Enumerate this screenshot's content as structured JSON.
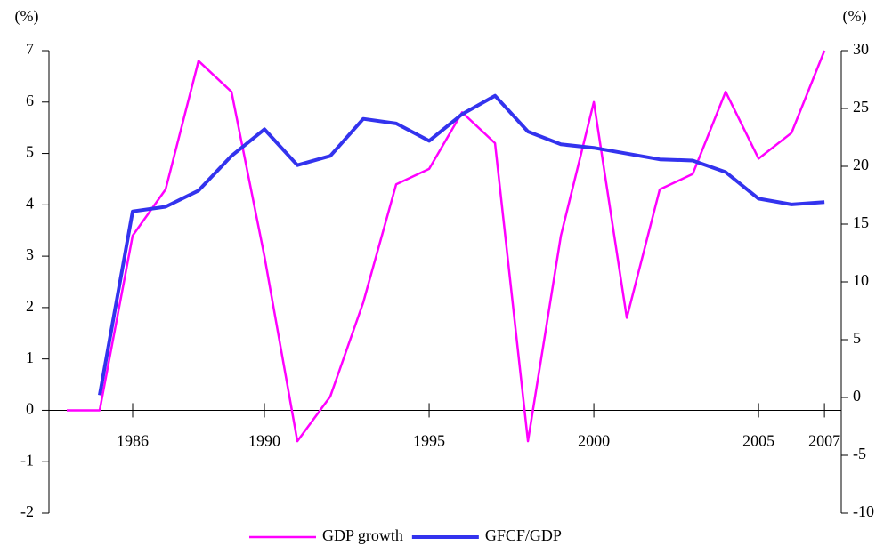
{
  "chart_data": {
    "type": "line",
    "ylabel": "(%)",
    "y2label": "(%)",
    "x": [
      1984,
      1985,
      1986,
      1987,
      1988,
      1989,
      1990,
      1991,
      1992,
      1993,
      1994,
      1995,
      1996,
      1997,
      1998,
      1999,
      2000,
      2001,
      2002,
      2003,
      2004,
      2005,
      2006,
      2007
    ],
    "series": [
      {
        "name": "GDP growth",
        "color": "#ff00ff",
        "values": [
          0,
          0,
          3.4,
          4.3,
          6.8,
          6.2,
          3.0,
          -0.6,
          0.27,
          2.1,
          4.4,
          4.7,
          5.8,
          5.2,
          -0.6,
          3.4,
          6.0,
          1.8,
          4.3,
          4.6,
          6.2,
          4.9,
          5.4,
          7.0
        ]
      },
      {
        "name": "GFCF/GDP",
        "color": "#3333ee",
        "axis": "y2",
        "values": [
          null,
          0.2,
          16.1,
          16.5,
          17.9,
          20.9,
          23.2,
          20.1,
          20.9,
          24.1,
          23.7,
          22.2,
          24.5,
          26.1,
          23.0,
          21.9,
          21.6,
          21.1,
          20.6,
          20.5,
          19.5,
          17.2,
          16.7,
          16.9
        ]
      }
    ],
    "xlim": [
      1983.46,
      2007.51
    ],
    "xticks": [
      1986,
      1990,
      1995,
      2000,
      2005,
      2007
    ],
    "ylim": [
      -2,
      7
    ],
    "yticks": [
      -2,
      -1,
      0,
      1,
      2,
      3,
      4,
      5,
      6,
      7
    ],
    "y2lim": [
      -10,
      30
    ],
    "y2ticks": [
      -10,
      -5,
      0,
      5,
      10,
      15,
      20,
      25,
      30
    ],
    "legend": "bottom"
  }
}
